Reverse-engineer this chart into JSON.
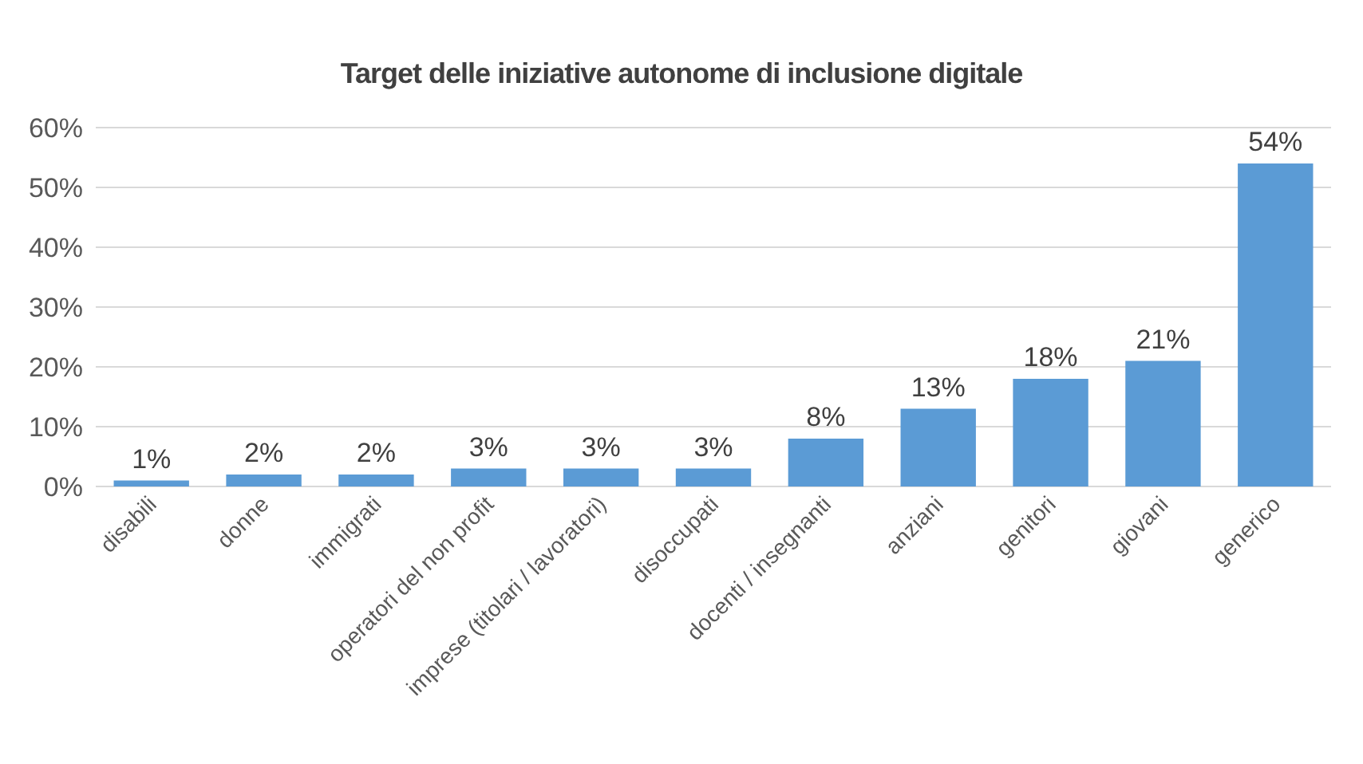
{
  "chart_data": {
    "type": "bar",
    "title": "Target delle iniziative autonome di inclusione digitale",
    "categories": [
      "disabili",
      "donne",
      "immigrati",
      "operatori del non profit",
      "imprese (titolari / lavoratori)",
      "disoccupati",
      "docenti / insegnanti",
      "anziani",
      "genitori",
      "giovani",
      "generico"
    ],
    "values": [
      1,
      2,
      2,
      3,
      3,
      3,
      8,
      13,
      18,
      21,
      54
    ],
    "value_labels": [
      "1%",
      "2%",
      "2%",
      "3%",
      "3%",
      "3%",
      "8%",
      "13%",
      "18%",
      "21%",
      "54%"
    ],
    "color": "#5b9bd5",
    "ylim": [
      0,
      60
    ],
    "yticks": [
      {
        "value": 0,
        "label": "0%"
      },
      {
        "value": 10,
        "label": "10%"
      },
      {
        "value": 20,
        "label": "20%"
      },
      {
        "value": 30,
        "label": "30%"
      },
      {
        "value": 40,
        "label": "40%"
      },
      {
        "value": 50,
        "label": "50%"
      },
      {
        "value": 60,
        "label": "60%"
      }
    ],
    "grid": "y"
  }
}
